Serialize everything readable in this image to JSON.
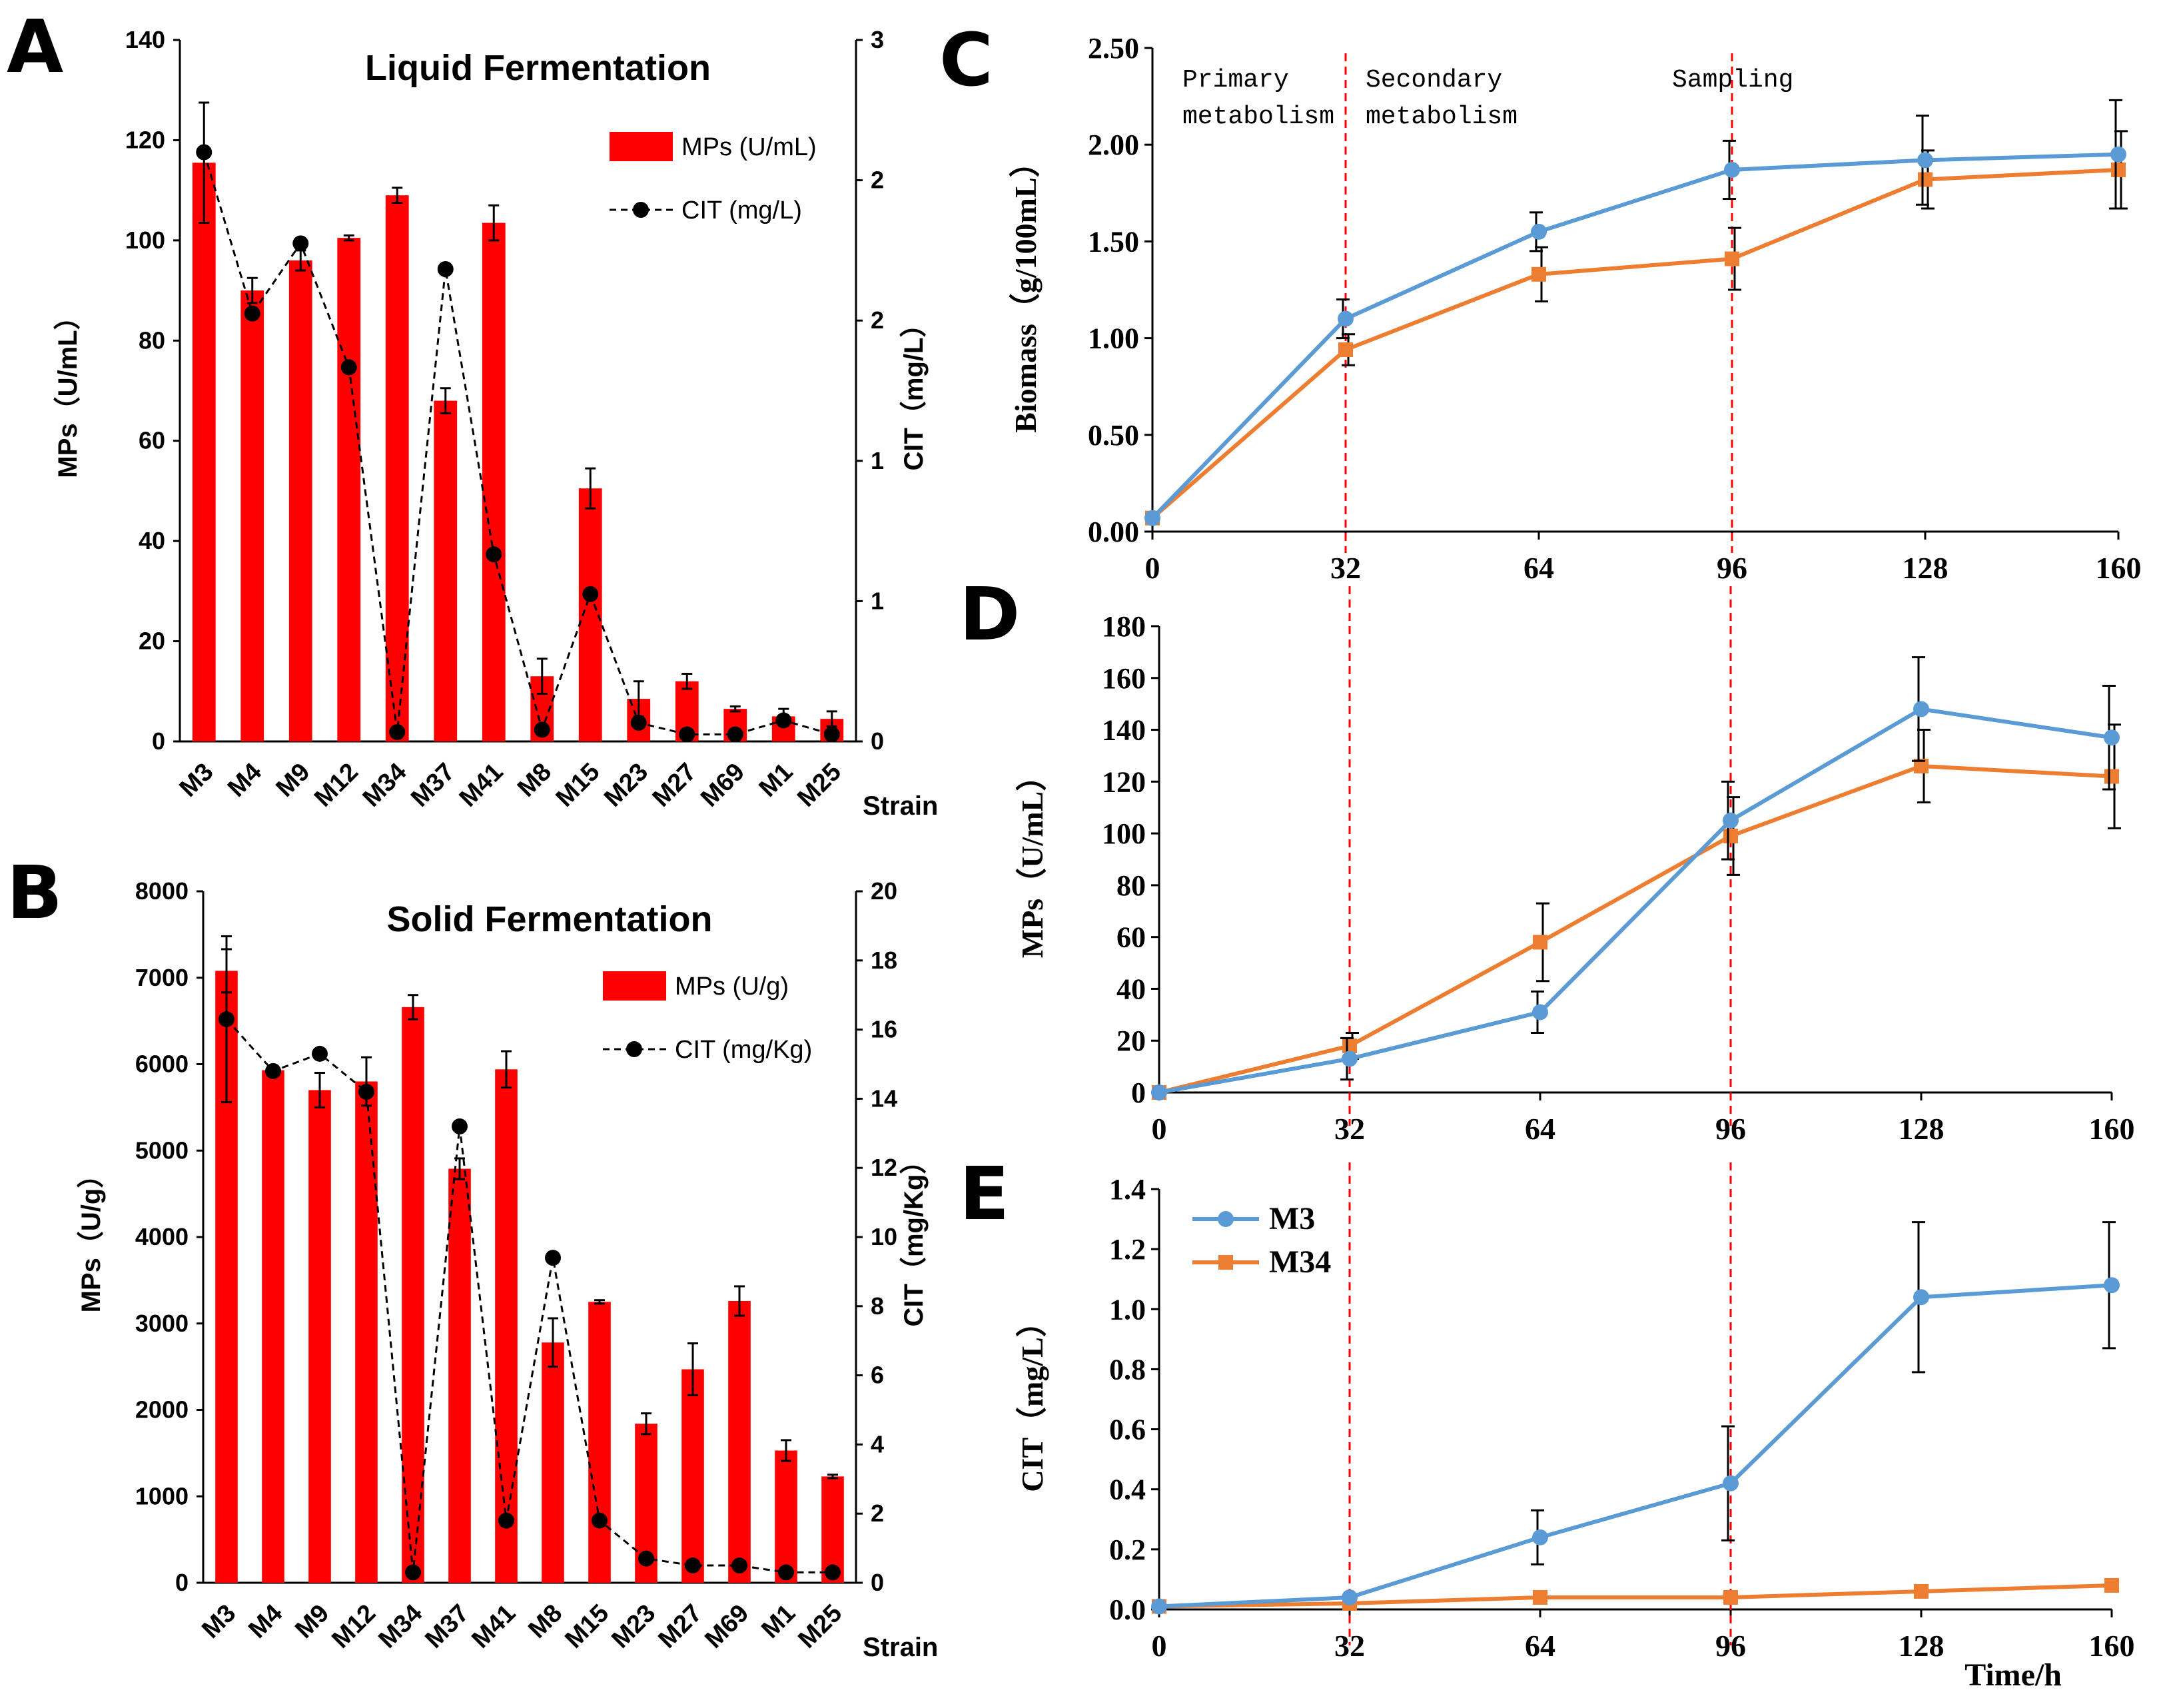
{
  "chart_data": [
    {
      "panel": "A",
      "type": "bar",
      "title": "Liquid Fermentation",
      "categories": [
        "M3",
        "M4",
        "M9",
        "M12",
        "M34",
        "M37",
        "M41",
        "M8",
        "M15",
        "M23",
        "M27",
        "M69",
        "M1",
        "M25"
      ],
      "xlabel": "Strain",
      "ylabel": "MPs（U/mL）",
      "y2label": "CIT（mg/L）",
      "ylim": [
        0,
        140
      ],
      "y2lim": [
        0,
        3
      ],
      "yticks": [
        "0",
        "20",
        "40",
        "60",
        "80",
        "100",
        "120",
        "140"
      ],
      "y2ticks": [
        "0",
        "1",
        "1",
        "2",
        "2",
        "3"
      ],
      "legend_position": "top-right",
      "series": [
        {
          "name": "MPs (U/mL)",
          "type": "bar",
          "axis": "left",
          "color": "#ff0000",
          "values": [
            115.5,
            90,
            96,
            100.5,
            109,
            68,
            103.5,
            13,
            50.5,
            8.5,
            12,
            6.5,
            5,
            4.5
          ],
          "errors": [
            12,
            2.5,
            2,
            0.5,
            1.5,
            2.5,
            3.5,
            3.5,
            4,
            3.5,
            1.5,
            0.5,
            1.5,
            1.5
          ]
        },
        {
          "name": "CIT (mg/L)",
          "type": "line",
          "axis": "right",
          "color": "#000000",
          "values": [
            2.52,
            1.83,
            2.13,
            1.6,
            0.04,
            2.02,
            0.8,
            0.05,
            0.63,
            0.08,
            0.03,
            0.03,
            0.09,
            0.03
          ]
        }
      ]
    },
    {
      "panel": "B",
      "type": "bar",
      "title": "Solid Fermentation",
      "categories": [
        "M3",
        "M4",
        "M9",
        "M12",
        "M34",
        "M37",
        "M41",
        "M8",
        "M15",
        "M23",
        "M27",
        "M69",
        "M1",
        "M25"
      ],
      "xlabel": "Strain",
      "ylabel": "MPs（U/g）",
      "y2label": "CIT（mg/Kg）",
      "ylim": [
        0,
        8000
      ],
      "y2lim": [
        0,
        20
      ],
      "yticks": [
        "0",
        "1000",
        "2000",
        "3000",
        "4000",
        "5000",
        "6000",
        "7000",
        "8000"
      ],
      "y2ticks": [
        "0",
        "2",
        "4",
        "6",
        "8",
        "10",
        "12",
        "14",
        "16",
        "18",
        "20"
      ],
      "legend_position": "top-right",
      "series": [
        {
          "name": "MPs (U/g)",
          "type": "bar",
          "axis": "left",
          "color": "#ff0000",
          "values": [
            7080,
            5930,
            5700,
            5800,
            6660,
            4790,
            5940,
            2780,
            3250,
            1840,
            2470,
            3260,
            1530,
            1230
          ],
          "errors": [
            250,
            0,
            200,
            280,
            140,
            120,
            210,
            280,
            20,
            120,
            300,
            170,
            120,
            20
          ]
        },
        {
          "name": "CIT (mg/Kg)",
          "type": "line",
          "axis": "right",
          "color": "#000000",
          "values": [
            16.3,
            14.8,
            15.3,
            14.2,
            0.3,
            13.2,
            1.8,
            9.4,
            1.8,
            0.7,
            0.5,
            0.5,
            0.3,
            0.3
          ],
          "errors": [
            2.4,
            0,
            0,
            0,
            0,
            0,
            0,
            0,
            0,
            0,
            0,
            0,
            0,
            0
          ]
        }
      ]
    },
    {
      "panel": "C",
      "type": "line",
      "xlabel": "",
      "ylabel": "Biomass（g/100mL）",
      "x": [
        0,
        32,
        64,
        96,
        128,
        160
      ],
      "xlim": [
        0,
        160
      ],
      "ylim": [
        0,
        2.5
      ],
      "yticks": [
        "0.00",
        "0.50",
        "1.00",
        "1.50",
        "2.00",
        "2.50"
      ],
      "xticks": [
        "0",
        "32",
        "64",
        "96",
        "128",
        "160"
      ],
      "series": [
        {
          "name": "M3",
          "color": "#5b9bd5",
          "values": [
            0.07,
            1.1,
            1.55,
            1.87,
            1.92,
            1.95
          ],
          "errors": [
            0,
            0.1,
            0.1,
            0.15,
            0.23,
            0.28
          ]
        },
        {
          "name": "M34",
          "color": "#ed7d31",
          "values": [
            0.07,
            0.94,
            1.33,
            1.41,
            1.82,
            1.87
          ],
          "errors": [
            0,
            0.08,
            0.14,
            0.16,
            0.15,
            0.2
          ]
        }
      ],
      "vlines": [
        32,
        96
      ],
      "annotations": [
        "Primary",
        "metabolism",
        "Secondary",
        "metabolism",
        "Sampling"
      ]
    },
    {
      "panel": "D",
      "type": "line",
      "xlabel": "",
      "ylabel": "MPs（U/mL）",
      "x": [
        0,
        32,
        64,
        96,
        128,
        160
      ],
      "xlim": [
        0,
        160
      ],
      "ylim": [
        0,
        180
      ],
      "yticks": [
        "0",
        "20",
        "40",
        "60",
        "80",
        "100",
        "120",
        "140",
        "160",
        "180"
      ],
      "xticks": [
        "0",
        "32",
        "64",
        "96",
        "128",
        "160"
      ],
      "series": [
        {
          "name": "M3",
          "color": "#5b9bd5",
          "values": [
            0,
            13,
            31,
            105,
            148,
            137
          ],
          "errors": [
            0,
            8,
            8,
            15,
            20,
            20
          ]
        },
        {
          "name": "M34",
          "color": "#ed7d31",
          "values": [
            0,
            18,
            58,
            99,
            126,
            122
          ],
          "errors": [
            0,
            5,
            15,
            15,
            14,
            20
          ]
        }
      ],
      "vlines": [
        32,
        96
      ]
    },
    {
      "panel": "E",
      "type": "line",
      "xlabel": "Time/h",
      "ylabel": "CIT（mg/L）",
      "x": [
        0,
        32,
        64,
        96,
        128,
        160
      ],
      "xlim": [
        0,
        160
      ],
      "ylim": [
        0,
        1.4
      ],
      "yticks": [
        "0.0",
        "0.2",
        "0.4",
        "0.6",
        "0.8",
        "1.0",
        "1.2",
        "1.4"
      ],
      "xticks": [
        "0",
        "32",
        "64",
        "96",
        "128",
        "160"
      ],
      "legend_position": "top-left",
      "series": [
        {
          "name": "M3",
          "color": "#5b9bd5",
          "values": [
            0.01,
            0.04,
            0.24,
            0.42,
            1.04,
            1.08
          ],
          "errors": [
            0,
            0,
            0.09,
            0.19,
            0.25,
            0.21
          ]
        },
        {
          "name": "M34",
          "color": "#ed7d31",
          "values": [
            0.01,
            0.02,
            0.04,
            0.04,
            0.06,
            0.08
          ],
          "errors": [
            0,
            0,
            0,
            0,
            0,
            0
          ]
        }
      ],
      "vlines": [
        32,
        96
      ]
    }
  ]
}
